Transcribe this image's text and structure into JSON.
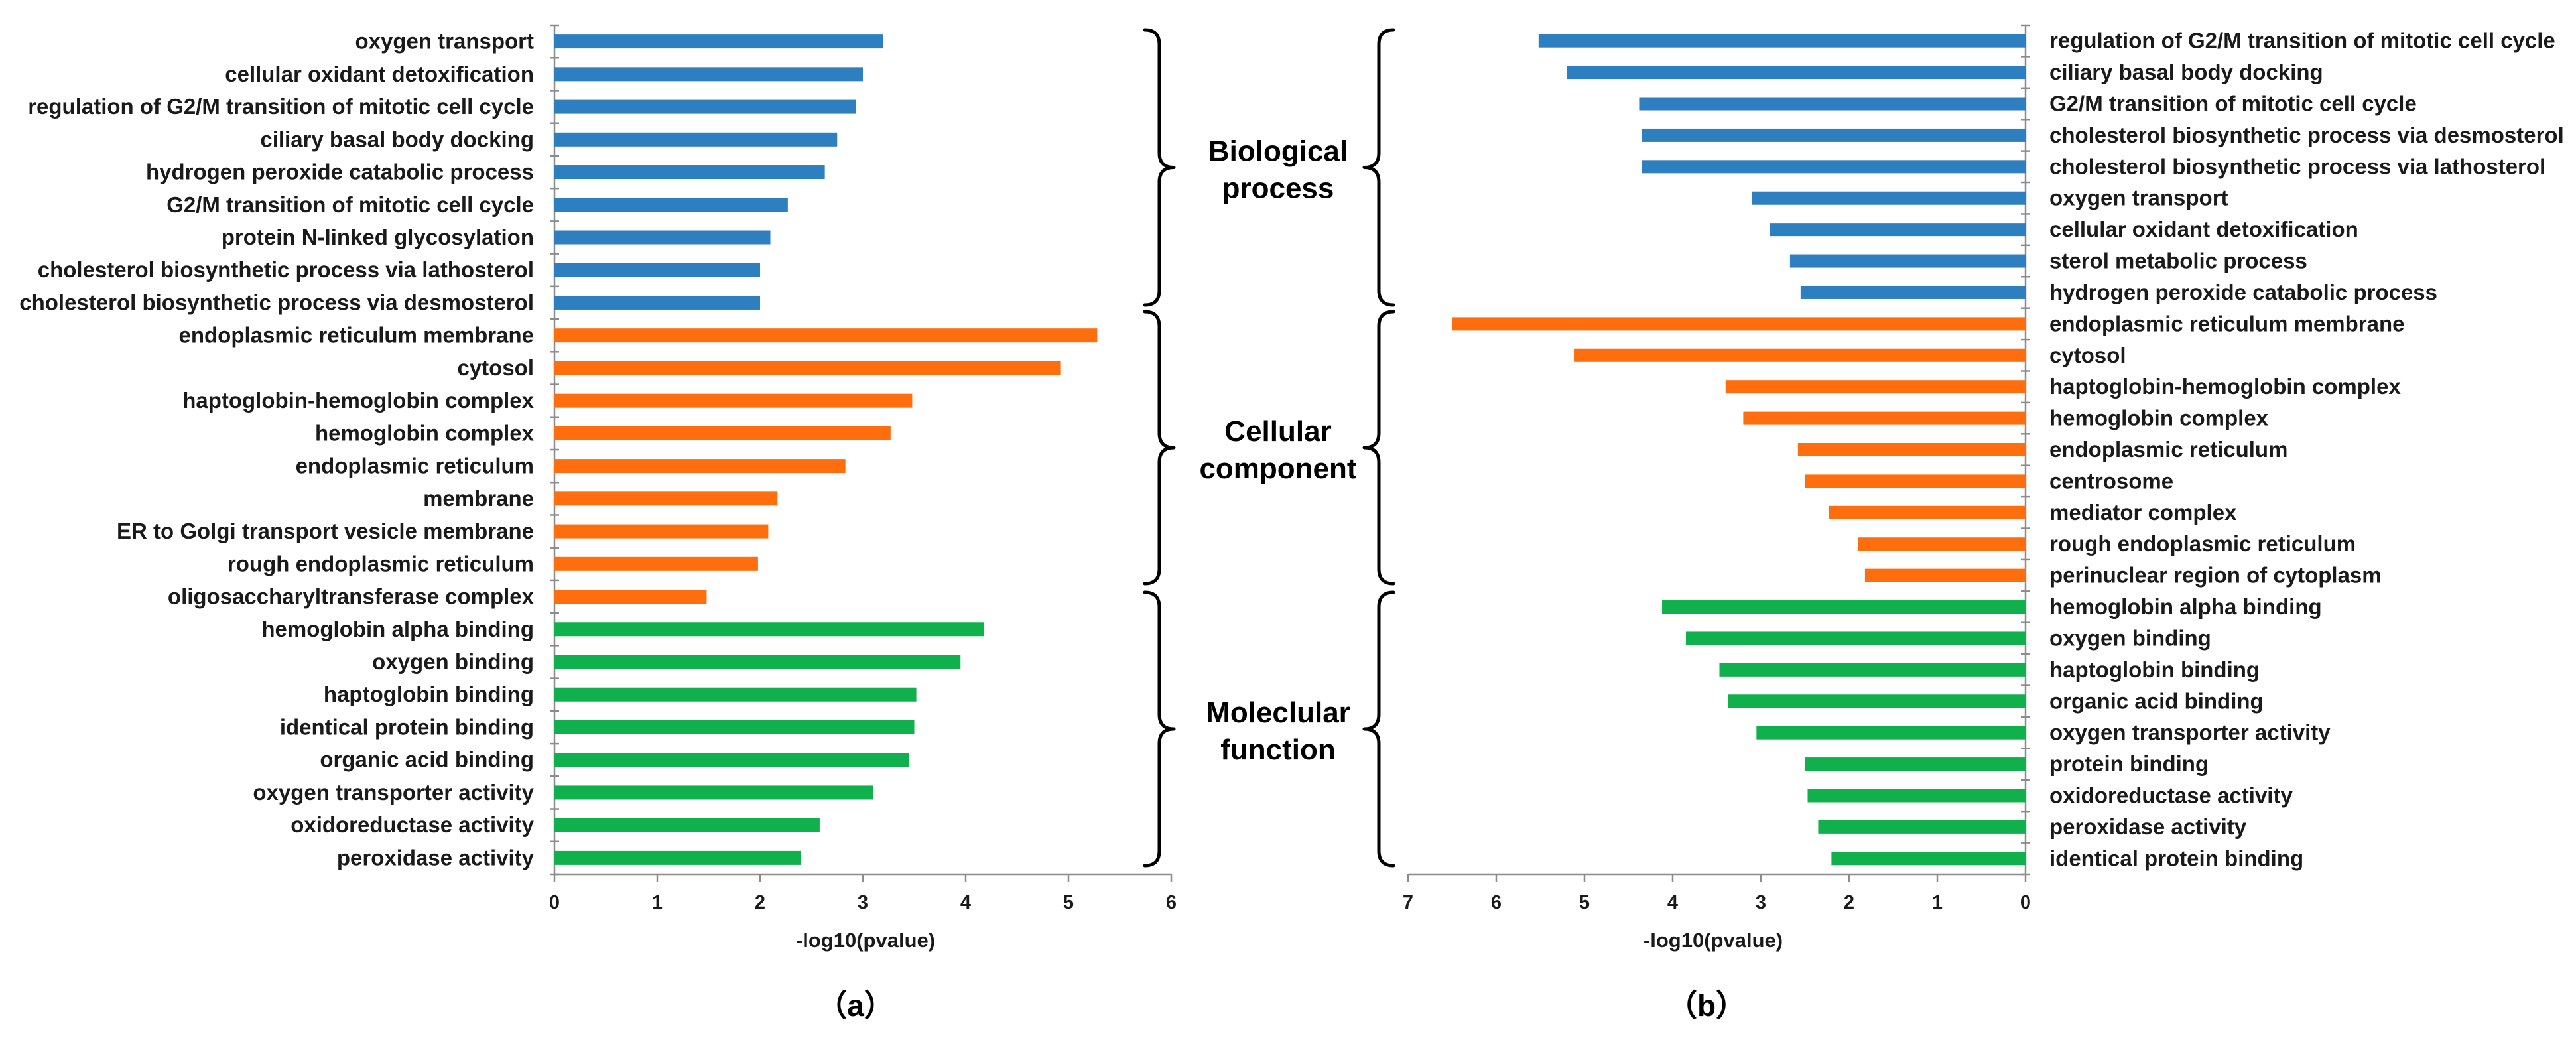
{
  "colors": {
    "biological": "#2e7fbf",
    "cellular": "#ff6e0e",
    "molecular": "#10b14c"
  },
  "group_labels": {
    "biological": [
      "Biological",
      "process"
    ],
    "cellular": [
      "Cellular",
      "component"
    ],
    "molecular": [
      "Moleclular",
      "function"
    ]
  },
  "chart_data": [
    {
      "type": "bar",
      "orientation": "horizontal",
      "panel_label": "（a）",
      "xlabel": "-log10(pvalue)",
      "xlim": [
        0,
        6
      ],
      "xticks": [
        0,
        1,
        2,
        3,
        4,
        5,
        6
      ],
      "direction": "left-to-right",
      "bars": [
        {
          "label": "oxygen transport",
          "value": 3.2,
          "group": "biological"
        },
        {
          "label": "cellular oxidant detoxification",
          "value": 3.0,
          "group": "biological"
        },
        {
          "label": "regulation of G2/M transition of mitotic cell cycle",
          "value": 2.93,
          "group": "biological"
        },
        {
          "label": "ciliary basal body docking",
          "value": 2.75,
          "group": "biological"
        },
        {
          "label": "hydrogen peroxide catabolic process",
          "value": 2.63,
          "group": "biological"
        },
        {
          "label": "G2/M transition of mitotic cell cycle",
          "value": 2.27,
          "group": "biological"
        },
        {
          "label": "protein N-linked glycosylation",
          "value": 2.1,
          "group": "biological"
        },
        {
          "label": "cholesterol biosynthetic process via lathosterol",
          "value": 2.0,
          "group": "biological"
        },
        {
          "label": "cholesterol biosynthetic process via desmosterol",
          "value": 2.0,
          "group": "biological"
        },
        {
          "label": "endoplasmic reticulum membrane",
          "value": 5.28,
          "group": "cellular"
        },
        {
          "label": "cytosol",
          "value": 4.92,
          "group": "cellular"
        },
        {
          "label": "haptoglobin-hemoglobin complex",
          "value": 3.48,
          "group": "cellular"
        },
        {
          "label": "hemoglobin complex",
          "value": 3.27,
          "group": "cellular"
        },
        {
          "label": "endoplasmic reticulum",
          "value": 2.83,
          "group": "cellular"
        },
        {
          "label": "membrane",
          "value": 2.17,
          "group": "cellular"
        },
        {
          "label": "ER to Golgi transport vesicle membrane",
          "value": 2.08,
          "group": "cellular"
        },
        {
          "label": "rough endoplasmic reticulum",
          "value": 1.98,
          "group": "cellular"
        },
        {
          "label": "oligosaccharyltransferase complex",
          "value": 1.48,
          "group": "cellular"
        },
        {
          "label": "hemoglobin alpha binding",
          "value": 4.18,
          "group": "molecular"
        },
        {
          "label": "oxygen binding",
          "value": 3.95,
          "group": "molecular"
        },
        {
          "label": "haptoglobin binding",
          "value": 3.52,
          "group": "molecular"
        },
        {
          "label": "identical protein binding",
          "value": 3.5,
          "group": "molecular"
        },
        {
          "label": "organic acid binding",
          "value": 3.45,
          "group": "molecular"
        },
        {
          "label": "oxygen transporter activity",
          "value": 3.1,
          "group": "molecular"
        },
        {
          "label": "oxidoreductase activity",
          "value": 2.58,
          "group": "molecular"
        },
        {
          "label": "peroxidase activity",
          "value": 2.4,
          "group": "molecular"
        }
      ]
    },
    {
      "type": "bar",
      "orientation": "horizontal",
      "panel_label": "（b）",
      "xlabel": "-log10(pvalue)",
      "xlim": [
        0,
        7
      ],
      "xticks": [
        7,
        6,
        5,
        4,
        3,
        2,
        1,
        0
      ],
      "direction": "right-to-left",
      "bars": [
        {
          "label": "regulation of G2/M transition of mitotic cell cycle",
          "value": 5.52,
          "group": "biological"
        },
        {
          "label": "ciliary basal body docking",
          "value": 5.2,
          "group": "biological"
        },
        {
          "label": "G2/M transition of mitotic cell cycle",
          "value": 4.38,
          "group": "biological"
        },
        {
          "label": "cholesterol biosynthetic process via desmosterol",
          "value": 4.35,
          "group": "biological"
        },
        {
          "label": "cholesterol biosynthetic process via lathosterol",
          "value": 4.35,
          "group": "biological"
        },
        {
          "label": "oxygen transport",
          "value": 3.1,
          "group": "biological"
        },
        {
          "label": "cellular oxidant detoxification",
          "value": 2.9,
          "group": "biological"
        },
        {
          "label": "sterol metabolic process",
          "value": 2.67,
          "group": "biological"
        },
        {
          "label": "hydrogen peroxide catabolic process",
          "value": 2.55,
          "group": "biological"
        },
        {
          "label": "endoplasmic reticulum membrane",
          "value": 6.5,
          "group": "cellular"
        },
        {
          "label": "cytosol",
          "value": 5.12,
          "group": "cellular"
        },
        {
          "label": "haptoglobin-hemoglobin complex",
          "value": 3.4,
          "group": "cellular"
        },
        {
          "label": "hemoglobin complex",
          "value": 3.2,
          "group": "cellular"
        },
        {
          "label": "endoplasmic reticulum",
          "value": 2.58,
          "group": "cellular"
        },
        {
          "label": "centrosome",
          "value": 2.5,
          "group": "cellular"
        },
        {
          "label": "mediator complex",
          "value": 2.23,
          "group": "cellular"
        },
        {
          "label": "rough endoplasmic reticulum",
          "value": 1.9,
          "group": "cellular"
        },
        {
          "label": "perinuclear region of cytoplasm",
          "value": 1.82,
          "group": "cellular"
        },
        {
          "label": "hemoglobin alpha binding",
          "value": 4.12,
          "group": "molecular"
        },
        {
          "label": "oxygen binding",
          "value": 3.85,
          "group": "molecular"
        },
        {
          "label": "haptoglobin binding",
          "value": 3.47,
          "group": "molecular"
        },
        {
          "label": "organic acid binding",
          "value": 3.37,
          "group": "molecular"
        },
        {
          "label": "oxygen transporter activity",
          "value": 3.05,
          "group": "molecular"
        },
        {
          "label": "protein binding",
          "value": 2.5,
          "group": "molecular"
        },
        {
          "label": "oxidoreductase activity",
          "value": 2.47,
          "group": "molecular"
        },
        {
          "label": "peroxidase activity",
          "value": 2.35,
          "group": "molecular"
        },
        {
          "label": "identical protein binding",
          "value": 2.2,
          "group": "molecular"
        }
      ]
    }
  ]
}
